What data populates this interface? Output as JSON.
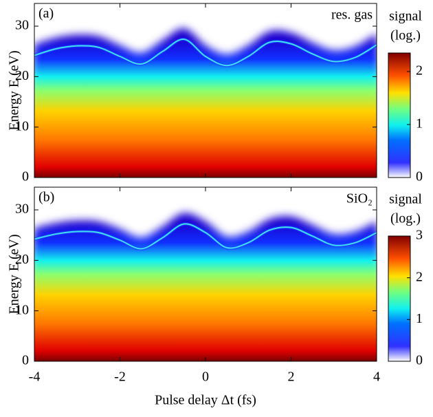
{
  "chart_data": [
    {
      "type": "heatmap",
      "panel_label": "(a)",
      "annotation": "res. gas",
      "ylabel": "Energy E (eV)",
      "x": [
        -4,
        -3.5,
        -3,
        -2.5,
        -2,
        -1.5,
        -1,
        -0.5,
        0,
        0.5,
        1,
        1.5,
        2,
        2.5,
        3,
        3.5,
        4
      ],
      "cutoff": {
        "color": "#3fe0f0",
        "values": [
          24.2,
          25.5,
          26.1,
          25.8,
          24,
          22.5,
          25,
          27.4,
          24,
          22.2,
          24,
          26.8,
          26.5,
          24.5,
          23,
          23.8,
          26.3
        ]
      },
      "xlim": [
        -4,
        4
      ],
      "xticks": [
        -4,
        -2,
        0,
        2,
        4
      ],
      "ylim": [
        0,
        34.5
      ],
      "yticks": [
        0,
        10,
        20,
        30
      ],
      "colorbar": {
        "label": [
          "signal",
          "(log.)"
        ],
        "clim": [
          0,
          2.35
        ],
        "ticks": [
          0,
          1,
          2
        ]
      }
    },
    {
      "type": "heatmap",
      "panel_label": "(b)",
      "annotation": "SiO₂",
      "ylabel": "Energy E (eV)",
      "xlabel": "Pulse delay Δt (fs)",
      "x": [
        -4,
        -3.5,
        -3,
        -2.5,
        -2,
        -1.5,
        -1,
        -0.5,
        0,
        0.5,
        1,
        1.5,
        2,
        2.5,
        3,
        3.5,
        4
      ],
      "cutoff": {
        "color": "#3fe0f0",
        "values": [
          24.2,
          25.2,
          25.7,
          25.5,
          24,
          22.3,
          24.5,
          27.2,
          25.5,
          22.5,
          23.5,
          26,
          26.5,
          24.8,
          23,
          23.5,
          25.5
        ]
      },
      "xlim": [
        -4,
        4
      ],
      "xticks": [
        -4,
        -2,
        0,
        2,
        4
      ],
      "ylim": [
        0,
        34.5
      ],
      "yticks": [
        0,
        10,
        20,
        30
      ],
      "colorbar": {
        "label": [
          "signal",
          "(log.)"
        ],
        "clim": [
          0,
          3
        ],
        "ticks": [
          0,
          1,
          2,
          3
        ]
      }
    }
  ]
}
